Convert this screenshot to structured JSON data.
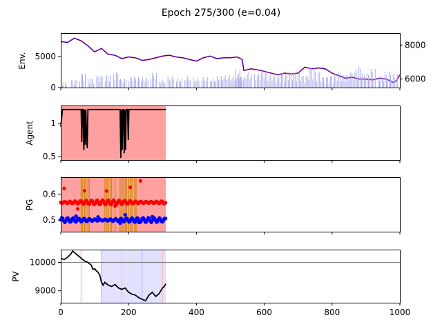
{
  "figure": {
    "title": "Epoch 275/300 (e=0.04)"
  },
  "chart_data": [
    {
      "panel": "env",
      "type": "line",
      "ylabel": "Env.",
      "xlim": [
        0,
        1000
      ],
      "ylim_left": [
        0,
        8800
      ],
      "yticks_left": [
        0,
        5000
      ],
      "ylim_right": [
        5500,
        8700
      ],
      "yticks_right": [
        6000,
        8000
      ],
      "x_ticks_visible": false,
      "series": [
        {
          "kind": "price_line",
          "color": "#0000ff",
          "overlay_color": "#ff0000",
          "x": [
            0,
            20,
            40,
            60,
            80,
            100,
            120,
            140,
            160,
            180,
            200,
            220,
            240,
            260,
            280,
            300,
            320,
            340,
            360,
            380,
            400,
            420,
            440,
            460,
            480,
            500,
            520,
            535,
            540,
            560,
            580,
            600,
            620,
            640,
            660,
            680,
            700,
            720,
            740,
            760,
            780,
            800,
            820,
            840,
            860,
            880,
            900,
            920,
            940,
            960,
            980,
            990,
            1000
          ],
          "y": [
            8200,
            8150,
            8400,
            8250,
            7950,
            7600,
            7800,
            7450,
            7400,
            7200,
            7300,
            7250,
            7100,
            7150,
            7250,
            7350,
            7400,
            7300,
            7250,
            7150,
            7050,
            7250,
            7350,
            7200,
            7250,
            7250,
            7300,
            7150,
            6500,
            6600,
            6550,
            6450,
            6350,
            6250,
            6350,
            6300,
            6350,
            6700,
            6600,
            6650,
            6600,
            6350,
            6200,
            6050,
            6100,
            6000,
            6000,
            5950,
            6050,
            6000,
            5800,
            5900,
            6250
          ]
        },
        {
          "kind": "volume_bars",
          "color": "#aaaaee",
          "left_axis": true,
          "x": [
            0,
            30,
            55,
            80,
            105,
            130,
            155,
            175,
            200,
            220,
            240,
            265,
            290,
            315,
            340,
            365,
            390,
            415,
            440,
            460,
            480,
            500,
            515,
            525,
            545,
            570,
            590,
            610,
            630,
            650,
            670,
            690,
            710,
            730,
            750,
            770,
            790,
            810,
            830,
            850,
            870,
            890,
            910,
            935,
            955,
            975
          ],
          "y": [
            900,
            1300,
            2400,
            1600,
            2000,
            2100,
            2600,
            1500,
            1900,
            1700,
            1600,
            2400,
            1300,
            1800,
            1500,
            1800,
            1600,
            1700,
            1500,
            1900,
            2000,
            1900,
            3000,
            1700,
            2600,
            2300,
            3000,
            2200,
            1900,
            2500,
            2800,
            2600,
            2000,
            3500,
            2700,
            1800,
            2000,
            2600,
            2200,
            2600,
            3600,
            2400,
            3100,
            2000,
            2600,
            2200
          ]
        }
      ]
    },
    {
      "panel": "agent",
      "type": "line",
      "ylabel": "Agent",
      "xlim": [
        0,
        1000
      ],
      "ylim": [
        0.45,
        1.27
      ],
      "yticks": [
        0.5,
        1.0
      ],
      "x_ticks_visible": false,
      "shaded_region": {
        "x": [
          0,
          310
        ],
        "color": "#ffa0a0"
      },
      "series": [
        {
          "name": "",
          "color": "#000000",
          "x": [
            0,
            5,
            60,
            62,
            64,
            66,
            68,
            70,
            72,
            74,
            76,
            78,
            80,
            82,
            84,
            175,
            177,
            179,
            181,
            183,
            185,
            187,
            189,
            191,
            193,
            195,
            197,
            199,
            201,
            310
          ],
          "y": [
            0.95,
            1.21,
            1.21,
            0.72,
            1.21,
            1.21,
            0.6,
            1.21,
            0.68,
            1.21,
            0.82,
            0.63,
            1.21,
            1.21,
            1.21,
            1.21,
            0.48,
            1.21,
            0.6,
            1.21,
            1.21,
            0.55,
            1.21,
            0.6,
            1.21,
            1.21,
            1.21,
            0.75,
            1.21,
            1.21
          ]
        }
      ]
    },
    {
      "panel": "pg",
      "type": "scatter",
      "ylabel": "PG",
      "xlim": [
        0,
        1000
      ],
      "ylim": [
        0.455,
        0.665
      ],
      "yticks": [
        0.5,
        0.6
      ],
      "x_ticks_visible": false,
      "shaded_region": {
        "x": [
          0,
          310
        ],
        "color": "#ffa0a0"
      },
      "vlines": {
        "color": "#d98c1a",
        "x": [
          60,
          64,
          70,
          74,
          80,
          84,
          130,
          136,
          140,
          146,
          150,
          160,
          175,
          180,
          184,
          190,
          194,
          200,
          205,
          210,
          218,
          222
        ]
      },
      "series": [
        {
          "name": "",
          "color": "#ff0000",
          "mean": 0.568,
          "range_x": [
            0,
            310
          ],
          "outliers": [
            {
              "x": 10,
              "y": 0.622
            },
            {
              "x": 50,
              "y": 0.543
            },
            {
              "x": 70,
              "y": 0.613
            },
            {
              "x": 135,
              "y": 0.612
            },
            {
              "x": 160,
              "y": 0.554
            },
            {
              "x": 205,
              "y": 0.626
            },
            {
              "x": 235,
              "y": 0.651
            }
          ]
        },
        {
          "name": "",
          "color": "#0000ff",
          "mean": 0.5,
          "range_x": [
            0,
            310
          ],
          "outliers": [
            {
              "x": 45,
              "y": 0.515
            },
            {
              "x": 110,
              "y": 0.512
            },
            {
              "x": 175,
              "y": 0.488
            },
            {
              "x": 190,
              "y": 0.52
            },
            {
              "x": 230,
              "y": 0.491
            },
            {
              "x": 270,
              "y": 0.513
            }
          ]
        }
      ]
    },
    {
      "panel": "pv",
      "type": "line",
      "ylabel": "PV",
      "xlim": [
        0,
        1000
      ],
      "xticks": [
        0,
        200,
        400,
        600,
        800,
        1000
      ],
      "ylim": [
        8580,
        10450
      ],
      "yticks": [
        9000,
        10000
      ],
      "hline": {
        "y": 10000,
        "color": "#808080"
      },
      "shaded_region": {
        "x": [
          120,
          310
        ],
        "color": "#e2e2ff"
      },
      "vlines": {
        "x": [
          60,
          120,
          180,
          240,
          300
        ],
        "colors": [
          "#ffc0c0",
          "#c0c0ff",
          "#ffc0c0",
          "#c0c0ff",
          "#ffc0c0"
        ]
      },
      "series": [
        {
          "name": "",
          "color": "#000000",
          "x": [
            0,
            10,
            20,
            30,
            35,
            40,
            50,
            60,
            70,
            80,
            90,
            95,
            100,
            105,
            110,
            115,
            120,
            125,
            130,
            140,
            150,
            160,
            170,
            180,
            190,
            200,
            210,
            220,
            230,
            240,
            250,
            260,
            270,
            280,
            290,
            300,
            305,
            310
          ],
          "y": [
            10150,
            10100,
            10180,
            10300,
            10400,
            10350,
            10250,
            10150,
            10050,
            10000,
            9900,
            9750,
            9780,
            9700,
            9650,
            9550,
            9300,
            9200,
            9300,
            9200,
            9150,
            9220,
            9100,
            9050,
            9100,
            8950,
            8880,
            8850,
            8760,
            8700,
            8650,
            8850,
            8950,
            8800,
            8900,
            9100,
            9150,
            9250
          ]
        }
      ]
    }
  ]
}
